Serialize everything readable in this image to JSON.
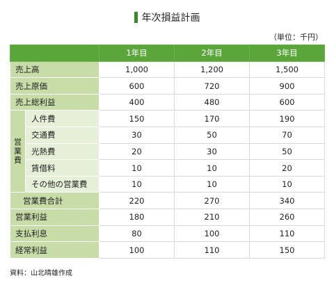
{
  "title": "年次損益計画",
  "unit": "（単位：千円）",
  "headers": [
    "1年目",
    "2年目",
    "3年目"
  ],
  "rows": [
    {
      "label": "売上高",
      "values": [
        "1,000",
        "1,200",
        "1,500"
      ]
    },
    {
      "label": "売上原価",
      "values": [
        "600",
        "720",
        "900"
      ]
    },
    {
      "label": "売上総利益",
      "values": [
        "400",
        "480",
        "600"
      ]
    }
  ],
  "expense_group_label": [
    "営",
    "業",
    "費"
  ],
  "expenses": [
    {
      "label": "人件費",
      "values": [
        "150",
        "170",
        "190"
      ]
    },
    {
      "label": "交通費",
      "values": [
        "30",
        "50",
        "70"
      ]
    },
    {
      "label": "光熱費",
      "values": [
        "20",
        "30",
        "50"
      ]
    },
    {
      "label": "賃借料",
      "values": [
        "10",
        "10",
        "20"
      ]
    },
    {
      "label": "その他の営業費",
      "values": [
        "10",
        "10",
        "10"
      ]
    }
  ],
  "expense_total": {
    "label": "営業費合計",
    "values": [
      "220",
      "270",
      "340"
    ]
  },
  "bottom_rows": [
    {
      "label": "営業利益",
      "values": [
        "180",
        "210",
        "260"
      ]
    },
    {
      "label": "支払利息",
      "values": [
        "80",
        "100",
        "110"
      ]
    },
    {
      "label": "経常利益",
      "values": [
        "100",
        "110",
        "150"
      ]
    }
  ],
  "source": "資料：山北晴雄作成",
  "colors": {
    "accent": "#5aa63a",
    "label_bg": "#c8dca8",
    "sublabel_bg": "#e6efd8"
  }
}
